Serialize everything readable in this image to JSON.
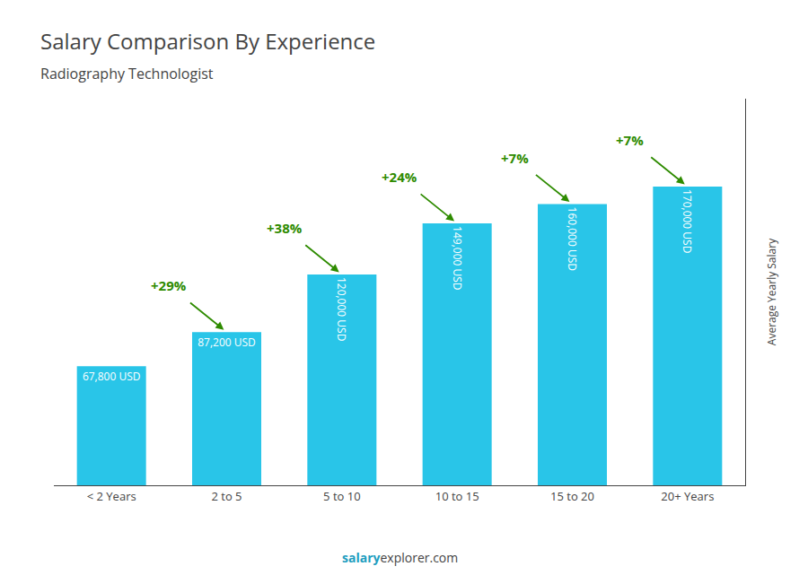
{
  "chart_data": {
    "type": "bar",
    "title": "Salary Comparison By Experience",
    "subtitle": "Radiography Technologist",
    "categories": [
      "< 2 Years",
      "2 to 5",
      "5 to 10",
      "10 to 15",
      "15 to 20",
      "20+ Years"
    ],
    "values": [
      67800,
      87200,
      120000,
      149000,
      160000,
      170000
    ],
    "value_labels": [
      "67,800 USD",
      "87,200 USD",
      "120,000 USD",
      "149,000 USD",
      "160,000 USD",
      "170,000 USD"
    ],
    "data_labels": true,
    "color": "#29c5e8",
    "annotations": [
      "+29%",
      "+38%",
      "+24%",
      "+7%",
      "+7%"
    ],
    "ylabel": "Average Yearly Salary",
    "footer": [
      "salary",
      "explorer.com"
    ],
    "ylim": [
      0,
      220000
    ],
    "tick_labels": "x",
    "grid": false
  }
}
